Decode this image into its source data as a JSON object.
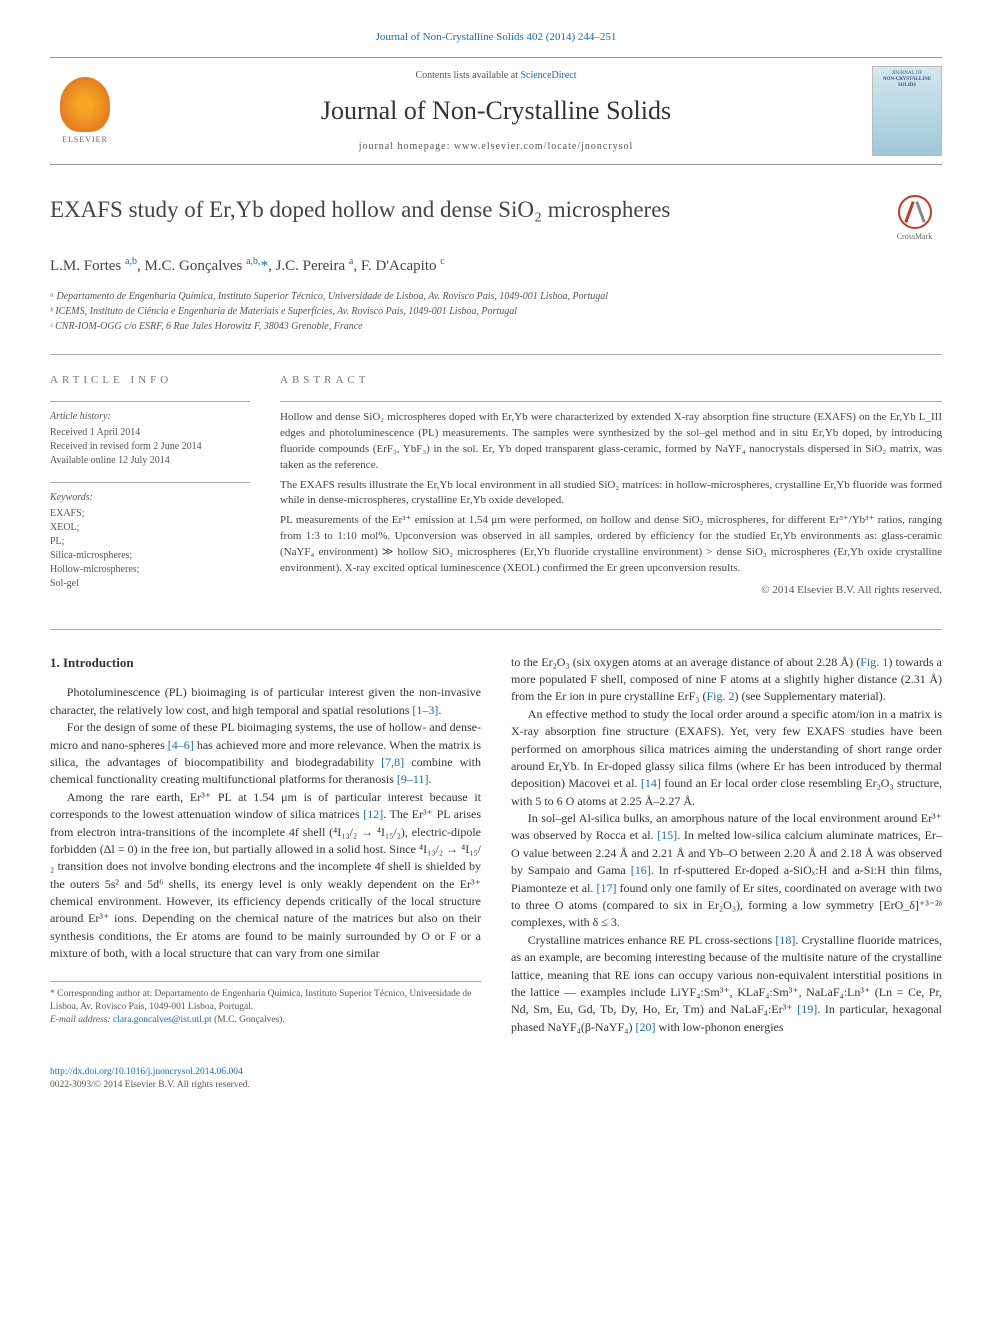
{
  "header": {
    "top_link": "Journal of Non-Crystalline Solids 402 (2014) 244–251",
    "contents_line_prefix": "Contents lists available at ",
    "contents_line_link": "ScienceDirect",
    "journal_title": "Journal of Non-Crystalline Solids",
    "homepage_prefix": "journal homepage: ",
    "homepage_url": "www.elsevier.com/locate/jnoncrysol",
    "elsevier_label": "ELSEVIER",
    "cover_top": "JOURNAL OF",
    "cover_title": "NON-CRYSTALLINE SOLIDS"
  },
  "crossmark_label": "CrossMark",
  "article": {
    "title": "EXAFS study of Er,Yb doped hollow and dense SiO₂ microspheres",
    "authors_html": "L.M. Fortes <sup>a,b</sup>, M.C. Gonçalves <sup>a,b,</sup><span class='star'>*</span>, J.C. Pereira <sup>a</sup>, F. D'Acapito <sup>c</sup>",
    "affiliations": [
      "ᵃ Departamento de Engenharia Química, Instituto Superior Técnico, Universidade de Lisboa, Av. Rovisco Pais, 1049-001 Lisboa, Portugal",
      "ᵇ ICEMS, Instituto de Ciência e Engenharia de Materiais e Superfícies, Av. Rovisco Pais, 1049-001 Lisboa, Portugal",
      "ᶜ CNR-IOM-OGG c/o ESRF, 6 Rue Jules Horowitz F, 38043 Grenoble, France"
    ]
  },
  "info": {
    "label": "article info",
    "history_label": "Article history:",
    "history": [
      "Received 1 April 2014",
      "Received in revised form 2 June 2014",
      "Available online 12 July 2014"
    ],
    "keywords_label": "Keywords:",
    "keywords": [
      "EXAFS;",
      "XEOL;",
      "PL;",
      "Silica-microspheres;",
      "Hollow-microspheres;",
      "Sol-gel"
    ]
  },
  "abstract": {
    "label": "abstract",
    "paragraphs": [
      "Hollow and dense SiO₂ microspheres doped with Er,Yb were characterized by extended X-ray absorption fine structure (EXAFS) on the Er,Yb L_III edges and photoluminescence (PL) measurements. The samples were synthesized by the sol–gel method and in situ Er,Yb doped, by introducing fluoride compounds (ErF₃, YbF₃) in the sol. Er, Yb doped transparent glass-ceramic, formed by NaYF₄ nanocrystals dispersed in SiO₂ matrix, was taken as the reference.",
      "The EXAFS results illustrate the Er,Yb local environment in all studied SiO₂ matrices: in hollow-microspheres, crystalline Er,Yb fluoride was formed while in dense-microspheres, crystalline Er,Yb oxide developed.",
      "PL measurements of the Er³⁺ emission at 1.54 μm were performed, on hollow and dense SiO₂ microspheres, for different Er³⁺/Yb³⁺ ratios, ranging from 1:3 to 1:10 mol%. Upconversion was observed in all samples, ordered by efficiency for the studied Er,Yb environments as: glass-ceramic (NaYF₄ environment) ≫ hollow SiO₂ microspheres (Er,Yb fluoride crystalline environment) > dense SiO₂ microspheres (Er,Yb oxide crystalline environment). X-ray excited optical luminescence (XEOL) confirmed the Er green upconversion results."
    ],
    "copyright": "© 2014 Elsevier B.V. All rights reserved."
  },
  "body": {
    "intro_heading": "1. Introduction",
    "left_paragraphs": [
      "Photoluminescence (PL) bioimaging is of particular interest given the non-invasive character, the relatively low cost, and high temporal and spatial resolutions <span class='ref'>[1–3]</span>.",
      "For the design of some of these PL bioimaging systems, the use of hollow- and dense-micro and nano-spheres <span class='ref'>[4–6]</span> has achieved more and more relevance. When the matrix is silica, the advantages of biocompatibility and biodegradability <span class='ref'>[7,8]</span> combine with chemical functionality creating multifunctional platforms for theranosis <span class='ref'>[9–11]</span>.",
      "Among the rare earth, Er³⁺ PL at 1.54 μm is of particular interest because it corresponds to the lowest attenuation window of silica matrices <span class='ref'>[12]</span>. The Er³⁺ PL arises from electron intra-transitions of the incomplete 4f shell (⁴I₁₃/₂ → ⁴I₁₅/₂), electric-dipole forbidden (Δl = 0) in the free ion, but partially allowed in a solid host. Since ⁴I₁₃/₂ → ⁴I₁₅/₂ transition does not involve bonding electrons and the incomplete 4f shell is shielded by the outers 5s² and 5d⁶ shells, its energy level is only weakly dependent on the Er³⁺ chemical environment. However, its efficiency depends critically of the local structure around Er³⁺ ions. Depending on the chemical nature of the matrices but also on their synthesis conditions, the Er atoms are found to be mainly surrounded by O or F or a mixture of both, with a local structure that can vary from one similar"
    ],
    "right_paragraphs": [
      "to the Er₂O₃ (six oxygen atoms at an average distance of about 2.28 Å) (<span class='ref'>Fig. 1</span>) towards a more populated F shell, composed of nine F atoms at a slightly higher distance (2.31 Å) from the Er ion in pure crystalline ErF₃ (<span class='ref'>Fig. 2</span>) (see Supplementary material).",
      "An effective method to study the local order around a specific atom/ion in a matrix is X-ray absorption fine structure (EXAFS). Yet, very few EXAFS studies have been performed on amorphous silica matrices aiming the understanding of short range order around Er,Yb. In Er-doped glassy silica films (where Er has been introduced by thermal deposition) Macovei et al. <span class='ref'>[14]</span> found an Er local order close resembling Er₂O₃ structure, with 5 to 6 O atoms at 2.25 Å–2.27 Å.",
      "In sol–gel Al-silica bulks, an amorphous nature of the local environment around Er³⁺ was observed by Rocca et al. <span class='ref'>[15]</span>. In melted low-silica calcium aluminate matrices, Er–O value between 2.24 Å and 2.21 Å and Yb–O between 2.20 Å and 2.18 Å was observed by Sampaio and Gama <span class='ref'>[16]</span>. In rf-sputtered Er-doped a-SiOₓ:H and a-Si:H thin films, Piamonteze et al. <span class='ref'>[17]</span> found only one family of Er sites, coordinated on average with two to three O atoms (compared to six in Er₂O₃), forming a low symmetry [ErO_δ]⁺³⁻²ᵟ complexes, with δ ≤ 3.",
      "Crystalline matrices enhance RE PL cross-sections <span class='ref'>[18]</span>. Crystalline fluoride matrices, as an example, are becoming interesting because of the multisite nature of the crystalline lattice, meaning that RE ions can occupy various non-equivalent interstitial positions in the lattice — examples include LiYF₄:Sm³⁺, KLaF₄:Sm³⁺, NaLaF₄:Ln³⁺ (Ln = Ce, Pr, Nd, Sm, Eu, Gd, Tb, Dy, Ho, Er, Tm) and NaLaF₄:Er³⁺ <span class='ref'>[19]</span>. In particular, hexagonal phased NaYF₄(β-NaYF₄) <span class='ref'>[20]</span> with low-phonon energies"
    ]
  },
  "footnote": {
    "corresponding": "* Corresponding author at: Departamento de Engenharia Química, Instituto Superior Técnico, Universidade de Lisboa, Av. Rovisco Pais, 1049-001 Lisboa, Portugal.",
    "email_label": "E-mail address: ",
    "email": "clara.goncalves@ist.utl.pt",
    "email_suffix": " (M.C. Gonçalves)."
  },
  "footer": {
    "doi": "http://dx.doi.org/10.1016/j.jnoncrysol.2014.06.004",
    "issn": "0022-3093/© 2014 Elsevier B.V. All rights reserved."
  },
  "colors": {
    "link": "#1a6aa8",
    "text": "#333333",
    "muted": "#555555",
    "border": "#aaaaaa"
  }
}
